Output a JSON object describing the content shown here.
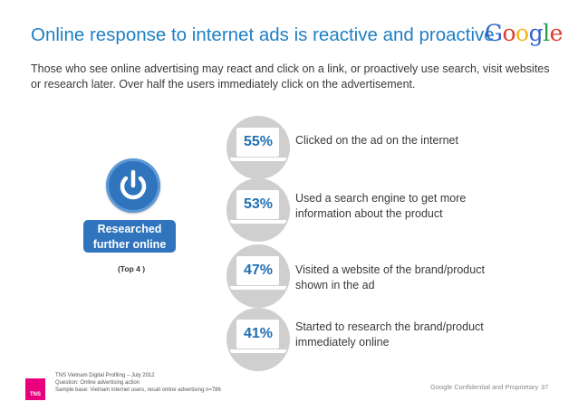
{
  "title": "Online response to internet ads is reactive and proactive",
  "logo": {
    "text": "Google",
    "letters": [
      {
        "char": "G",
        "color": "#3366cc"
      },
      {
        "char": "o",
        "color": "#dd3b30"
      },
      {
        "char": "o",
        "color": "#f2b713"
      },
      {
        "char": "g",
        "color": "#3366cc"
      },
      {
        "char": "l",
        "color": "#2e9c47"
      },
      {
        "char": "e",
        "color": "#dd3b30"
      }
    ]
  },
  "subtitle": "Those who see online advertising may react and click on a link, or proactively use search, visit websites or research later. Over half the users immediately click on the advertisement.",
  "left_panel": {
    "icon": "power-icon",
    "badge_line1": "Researched",
    "badge_line2": "further online",
    "note": "(Top 4 )"
  },
  "items": [
    {
      "percent": "55%",
      "line1": "Clicked on the ad on the internet",
      "line2": ""
    },
    {
      "percent": "53%",
      "line1": "Used a search engine to get more",
      "line2": "information about the product"
    },
    {
      "percent": "47%",
      "line1": "Visited a website of the brand/product",
      "line2": "shown in the ad"
    },
    {
      "percent": "41%",
      "line1": "Started to research the brand/product",
      "line2": "immediately online"
    }
  ],
  "footer": {
    "brand": "TNS",
    "line1": "TNS Vietnam Digital Profiling – July 2012",
    "line2": "Question: Online advertising action",
    "line3": "Sample base: Vietnam internet users, recall online advertising n=786",
    "confidential": "Google Confidential and Proprietary",
    "page": "37"
  },
  "colors": {
    "title": "#1f7fc4",
    "accent_blue": "#2f74bd",
    "circle_gray": "#cfcfcf",
    "tns_magenta": "#e8007d"
  }
}
